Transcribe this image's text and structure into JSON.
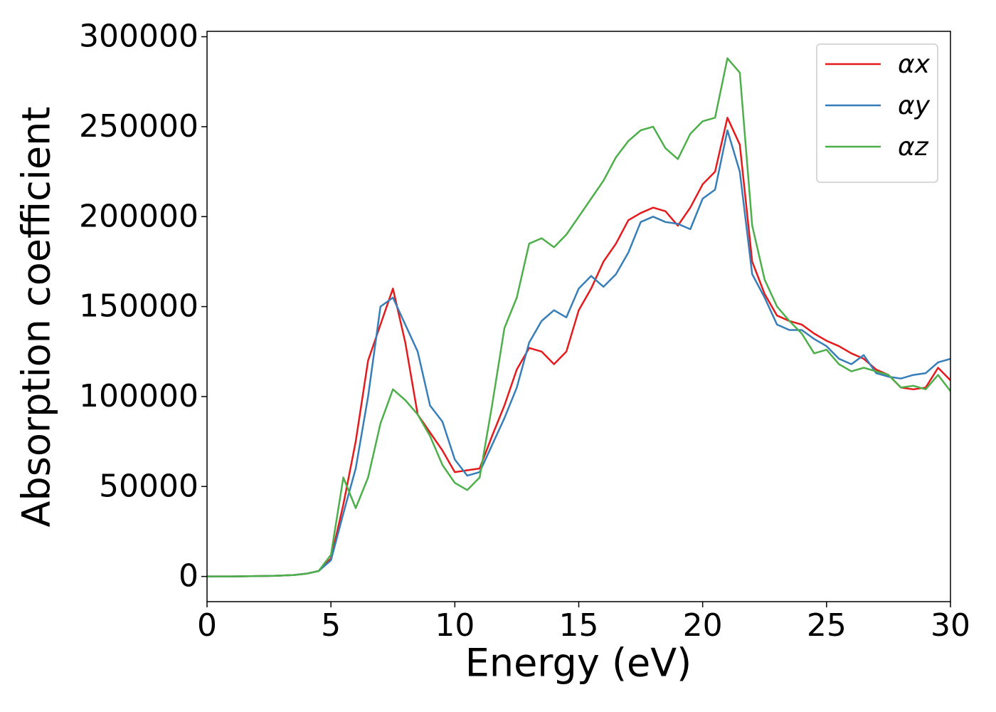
{
  "chart_data": {
    "type": "line",
    "xlabel": "Energy (eV)",
    "ylabel": "Absorption coefficient",
    "xlim": [
      0,
      30
    ],
    "ylim": [
      -14000,
      303000
    ],
    "xticks": [
      0,
      5,
      10,
      15,
      20,
      25,
      30
    ],
    "yticks": [
      0,
      50000,
      100000,
      150000,
      200000,
      250000,
      300000
    ],
    "legend": "upper right",
    "x": [
      0,
      0.5,
      1,
      1.5,
      2,
      2.5,
      3,
      3.5,
      4,
      4.5,
      5,
      5.5,
      6,
      6.5,
      7,
      7.5,
      8,
      8.5,
      9,
      9.5,
      10,
      10.5,
      11,
      11.5,
      12,
      12.5,
      13,
      13.5,
      14,
      14.5,
      15,
      15.5,
      16,
      16.5,
      17,
      17.5,
      18,
      18.5,
      19,
      19.5,
      20,
      20.5,
      21,
      21.5,
      22,
      22.5,
      23,
      23.5,
      24,
      24.5,
      25,
      25.5,
      26,
      26.5,
      27,
      27.5,
      28,
      28.5,
      29,
      29.5,
      30
    ],
    "series": [
      {
        "name": "αx",
        "color": "#e41a1c",
        "values": [
          0,
          0,
          0,
          100,
          200,
          300,
          500,
          800,
          1500,
          3000,
          10000,
          40000,
          75000,
          120000,
          140000,
          160000,
          130000,
          90000,
          80000,
          70000,
          58000,
          59000,
          60000,
          78000,
          95000,
          115000,
          127000,
          125000,
          118000,
          125000,
          148000,
          160000,
          175000,
          185000,
          198000,
          202000,
          205000,
          203000,
          195000,
          205000,
          218000,
          225000,
          255000,
          240000,
          175000,
          157000,
          145000,
          142000,
          140000,
          135000,
          131000,
          128000,
          124000,
          121000,
          115000,
          112000,
          105000,
          104000,
          105000,
          116000,
          109000
        ]
      },
      {
        "name": "αy",
        "color": "#377eb8",
        "values": [
          0,
          0,
          0,
          100,
          200,
          300,
          500,
          800,
          1500,
          3000,
          9000,
          35000,
          60000,
          100000,
          150000,
          155000,
          140000,
          125000,
          95000,
          86000,
          65000,
          56000,
          58000,
          73000,
          88000,
          105000,
          130000,
          142000,
          148000,
          144000,
          160000,
          167000,
          161000,
          168000,
          180000,
          197000,
          200000,
          197000,
          196000,
          193000,
          210000,
          215000,
          248000,
          225000,
          168000,
          155000,
          140000,
          137000,
          137000,
          132000,
          128000,
          121000,
          118000,
          123000,
          113000,
          111000,
          110000,
          112000,
          113000,
          119000,
          121000
        ]
      },
      {
        "name": "αz",
        "color": "#4daf4a",
        "values": [
          0,
          0,
          0,
          100,
          200,
          300,
          500,
          800,
          1500,
          3000,
          12000,
          55000,
          38000,
          55000,
          85000,
          104000,
          98000,
          90000,
          78000,
          62000,
          52000,
          48000,
          55000,
          95000,
          138000,
          155000,
          185000,
          188000,
          183000,
          190000,
          200000,
          210000,
          220000,
          233000,
          242000,
          248000,
          250000,
          238000,
          232000,
          246000,
          253000,
          255000,
          288000,
          280000,
          195000,
          165000,
          150000,
          142000,
          135000,
          124000,
          126000,
          118000,
          114000,
          116000,
          114000,
          112000,
          105000,
          106000,
          104000,
          112000,
          103000
        ]
      }
    ]
  }
}
